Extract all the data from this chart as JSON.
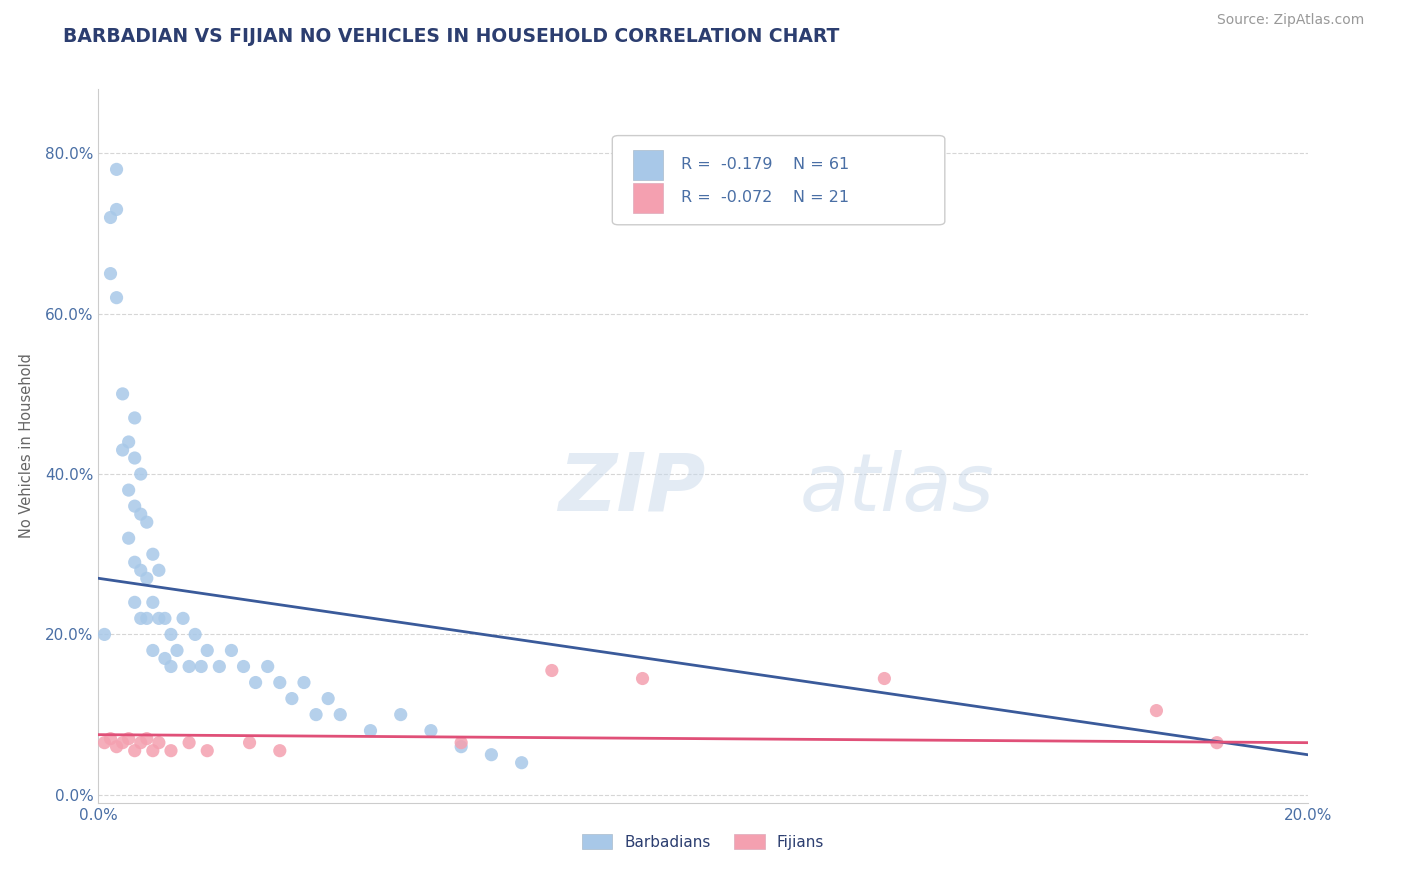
{
  "title": "BARBADIAN VS FIJIAN NO VEHICLES IN HOUSEHOLD CORRELATION CHART",
  "source": "Source: ZipAtlas.com",
  "ylabel": "No Vehicles in Household",
  "yticks": [
    "0.0%",
    "20.0%",
    "40.0%",
    "60.0%",
    "80.0%"
  ],
  "ytick_vals": [
    0.0,
    0.2,
    0.4,
    0.6,
    0.8
  ],
  "xrange": [
    0.0,
    0.2
  ],
  "yrange": [
    -0.01,
    0.88
  ],
  "legend_barbadian_R": "R =  -0.179",
  "legend_barbadian_N": "N = 61",
  "legend_fijian_R": "R =  -0.072",
  "legend_fijian_N": "N = 21",
  "barbadian_color": "#a8c8e8",
  "fijian_color": "#f4a0b0",
  "trendline_barbadian_color": "#3a5a9a",
  "trendline_fijian_color": "#e05078",
  "background_color": "#ffffff",
  "grid_color": "#cccccc",
  "title_color": "#2c3e70",
  "axis_label_color": "#4a6fa5",
  "barbadian_x": [
    0.001,
    0.002,
    0.002,
    0.003,
    0.003,
    0.003,
    0.004,
    0.004,
    0.004,
    0.005,
    0.005,
    0.005,
    0.005,
    0.006,
    0.006,
    0.006,
    0.006,
    0.006,
    0.007,
    0.007,
    0.007,
    0.007,
    0.008,
    0.008,
    0.008,
    0.009,
    0.009,
    0.009,
    0.01,
    0.01,
    0.01,
    0.011,
    0.011,
    0.012,
    0.012,
    0.013,
    0.013,
    0.014,
    0.015,
    0.015,
    0.016,
    0.017,
    0.018,
    0.02,
    0.021,
    0.022,
    0.024,
    0.025,
    0.026,
    0.028,
    0.03,
    0.032,
    0.035,
    0.038,
    0.04,
    0.045,
    0.05,
    0.055,
    0.06,
    0.065,
    0.07
  ],
  "barbadian_y": [
    0.2,
    0.72,
    0.68,
    0.78,
    0.74,
    0.62,
    0.5,
    0.46,
    0.42,
    0.44,
    0.4,
    0.36,
    0.32,
    0.47,
    0.43,
    0.36,
    0.3,
    0.25,
    0.42,
    0.36,
    0.3,
    0.25,
    0.36,
    0.3,
    0.24,
    0.32,
    0.26,
    0.22,
    0.3,
    0.25,
    0.2,
    0.24,
    0.18,
    0.22,
    0.17,
    0.2,
    0.16,
    0.18,
    0.22,
    0.16,
    0.2,
    0.16,
    0.18,
    0.16,
    0.14,
    0.18,
    0.16,
    0.2,
    0.14,
    0.16,
    0.14,
    0.12,
    0.1,
    0.08,
    0.1,
    0.08,
    0.06,
    0.08,
    0.06,
    0.05,
    0.04
  ],
  "fijian_x": [
    0.001,
    0.002,
    0.003,
    0.004,
    0.005,
    0.006,
    0.007,
    0.008,
    0.009,
    0.01,
    0.012,
    0.015,
    0.018,
    0.022,
    0.028,
    0.035,
    0.06,
    0.075,
    0.09,
    0.13,
    0.175
  ],
  "fijian_y": [
    0.06,
    0.07,
    0.06,
    0.06,
    0.07,
    0.05,
    0.06,
    0.07,
    0.05,
    0.06,
    0.05,
    0.06,
    0.05,
    0.06,
    0.05,
    0.06,
    0.06,
    0.15,
    0.14,
    0.14,
    0.1
  ],
  "watermark_zip": "ZIP",
  "watermark_atlas": "atlas"
}
